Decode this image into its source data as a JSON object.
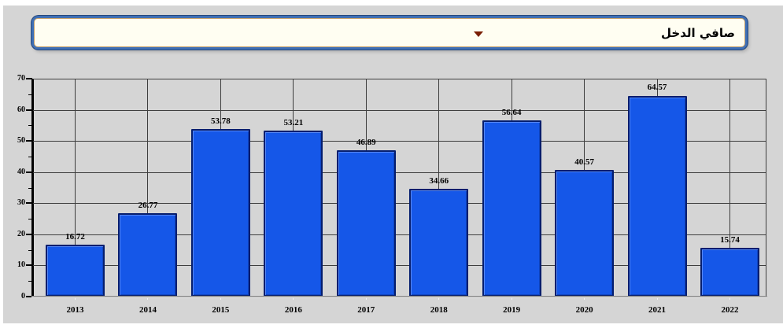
{
  "panel": {
    "background": "#d5d5d5"
  },
  "dropdown": {
    "selected_label": "صافي الدخل",
    "arrow_icon": "dropdown-arrow",
    "border_color": "#3f6fb5",
    "fill_color": "#fffef2",
    "arrow_color": "#7a1e04"
  },
  "chart_data": {
    "type": "bar",
    "title": "صافي الدخل",
    "xlabel": "",
    "ylabel": "",
    "categories": [
      "2013",
      "2014",
      "2015",
      "2016",
      "2017",
      "2018",
      "2019",
      "2020",
      "2021",
      "2022"
    ],
    "values": [
      16.72,
      26.77,
      53.78,
      53.21,
      46.89,
      34.66,
      56.64,
      40.57,
      64.57,
      15.74
    ],
    "value_labels": [
      "16.72",
      "26.77",
      "53.78",
      "53.21",
      "46.89",
      "34.66",
      "56.64",
      "40.57",
      "64.57",
      "15.74"
    ],
    "ylim": [
      0,
      70
    ],
    "yticks": [
      0,
      10,
      20,
      30,
      40,
      50,
      60,
      70
    ],
    "y_minor_step": 5,
    "grid": true,
    "legend_position": "none",
    "bar_color": "#1557e8",
    "bar_border_color": "#041d6e",
    "plot_background": "#d5d5d5",
    "gridline_color": "#3e3e3e"
  }
}
